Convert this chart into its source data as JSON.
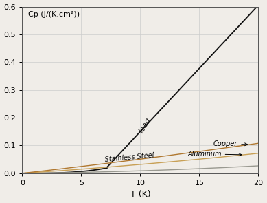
{
  "title": "",
  "ylabel_text": "Cp (J/(K.cm²))",
  "xlabel": "T (K)",
  "xlim": [
    0,
    20
  ],
  "ylim": [
    0,
    0.6
  ],
  "yticks": [
    0.0,
    0.1,
    0.2,
    0.3,
    0.4,
    0.5,
    0.6
  ],
  "xticks": [
    0,
    5,
    10,
    15,
    20
  ],
  "grid_color": "#cccccc",
  "bg_color": "#f0ede8",
  "lead_color": "#111111",
  "stainless_color": "#999990",
  "aluminum_color": "#c8a055",
  "copper_color": "#b07830",
  "lead_label": "lead",
  "stainless_label": "Stainless Steel",
  "aluminum_label": "Aluminum",
  "copper_label": "Copper",
  "figsize": [
    3.89,
    2.95
  ],
  "dpi": 100
}
